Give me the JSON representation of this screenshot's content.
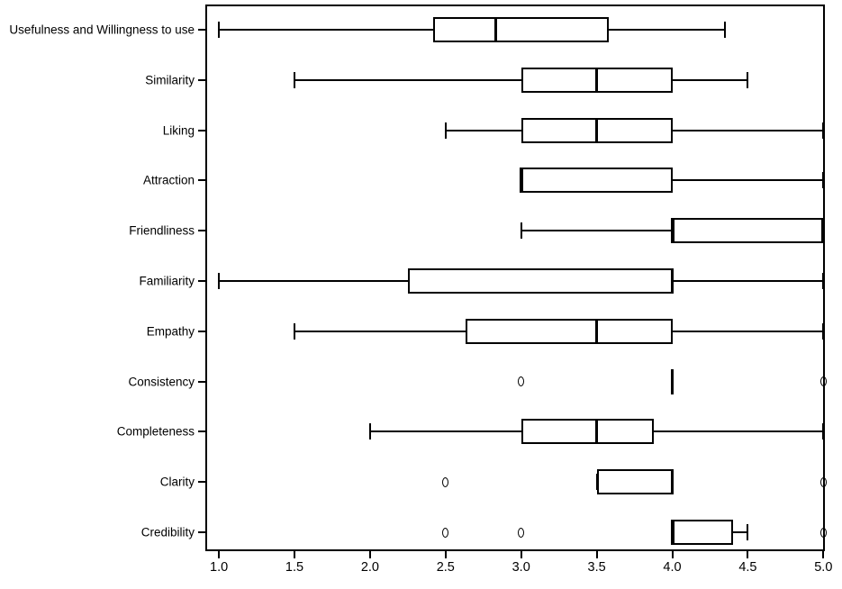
{
  "chart_data": {
    "type": "boxplot",
    "orientation": "horizontal",
    "title": "",
    "xlabel": "",
    "ylabel": "",
    "grid": false,
    "xlim": [
      0.91,
      5.01
    ],
    "x_tick_values": [
      1.0,
      1.5,
      2.0,
      2.5,
      3.0,
      3.5,
      4.0,
      4.5,
      5.0
    ],
    "x_tick_labels": [
      "1.0",
      "1.5",
      "2.0",
      "2.5",
      "3.0",
      "3.5",
      "4.0",
      "4.5",
      "5.0"
    ],
    "value_scale": "Likert 1-5",
    "categories": [
      "Usefulness and Willingness to use",
      "Similarity",
      "Liking",
      "Attraction",
      "Friendliness",
      "Familiarity",
      "Empathy",
      "Consistency",
      "Completeness",
      "Clarity",
      "Credibility"
    ],
    "series": [
      {
        "category": "Usefulness and Willingness to use",
        "whisker_low": 1.0,
        "q1": 2.42,
        "median": 2.83,
        "q3": 3.58,
        "whisker_high": 4.35,
        "outliers": []
      },
      {
        "category": "Similarity",
        "whisker_low": 1.5,
        "q1": 3.0,
        "median": 3.5,
        "q3": 4.0,
        "whisker_high": 4.5,
        "outliers": []
      },
      {
        "category": "Liking",
        "whisker_low": 2.5,
        "q1": 3.0,
        "median": 3.5,
        "q3": 4.0,
        "whisker_high": 5.0,
        "outliers": []
      },
      {
        "category": "Attraction",
        "whisker_low": 3.0,
        "q1": 3.0,
        "median": 3.0,
        "q3": 4.0,
        "whisker_high": 5.0,
        "outliers": []
      },
      {
        "category": "Friendliness",
        "whisker_low": 3.0,
        "q1": 4.0,
        "median": 4.0,
        "q3": 5.0,
        "whisker_high": 5.0,
        "outliers": []
      },
      {
        "category": "Familiarity",
        "whisker_low": 1.0,
        "q1": 2.25,
        "median": 4.0,
        "q3": 4.0,
        "whisker_high": 5.0,
        "outliers": []
      },
      {
        "category": "Empathy",
        "whisker_low": 1.5,
        "q1": 2.63,
        "median": 3.5,
        "q3": 4.0,
        "whisker_high": 5.0,
        "outliers": []
      },
      {
        "category": "Consistency",
        "whisker_low": 4.0,
        "q1": 4.0,
        "median": 4.0,
        "q3": 4.0,
        "whisker_high": 4.0,
        "outliers": [
          3.0,
          5.0
        ]
      },
      {
        "category": "Completeness",
        "whisker_low": 2.0,
        "q1": 3.0,
        "median": 3.5,
        "q3": 3.88,
        "whisker_high": 5.0,
        "outliers": []
      },
      {
        "category": "Clarity",
        "whisker_low": 3.5,
        "q1": 3.5,
        "median": 4.0,
        "q3": 4.0,
        "whisker_high": 4.0,
        "outliers": [
          2.5,
          5.0
        ]
      },
      {
        "category": "Credibility",
        "whisker_low": 4.0,
        "q1": 4.0,
        "median": 4.0,
        "q3": 4.4,
        "whisker_high": 4.5,
        "outliers": [
          2.5,
          3.0,
          5.0
        ]
      }
    ],
    "colors": {
      "line": "#000000",
      "box_fill": "#ffffff",
      "background": "#ffffff"
    },
    "legend": null
  }
}
